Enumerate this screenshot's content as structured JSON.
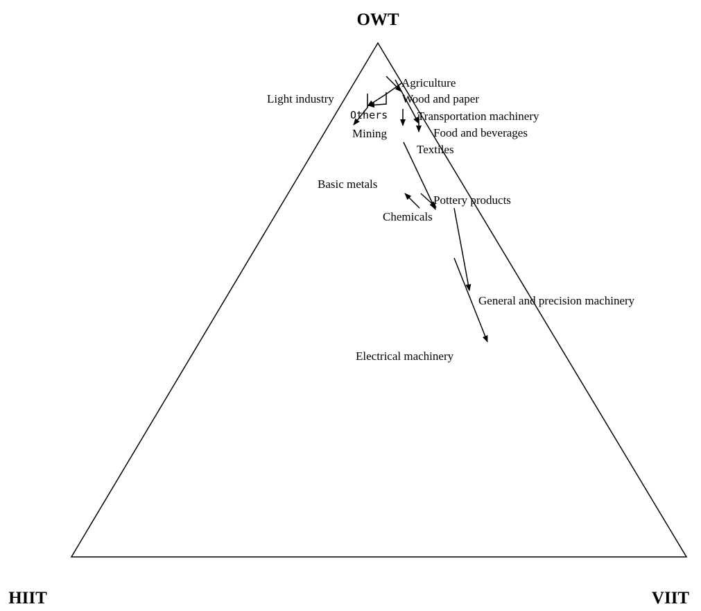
{
  "corners": {
    "top": "OWT",
    "left": "HIIT",
    "right": "VIIT"
  },
  "labels": [
    "Agriculture",
    "Light industry",
    "Wood and paper",
    "Others",
    "Transportation machinery",
    "Mining",
    "Food and beverages",
    "Textiles",
    "Basic metals",
    "Pottery products",
    "Chemicals",
    "General and precision machinery",
    "Electrical machinery"
  ]
}
